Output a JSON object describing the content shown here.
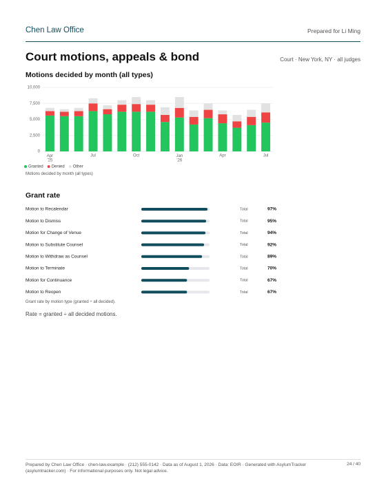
{
  "header": {
    "firm": "Chen Law Office",
    "prepared_for": "Prepared for Li Ming"
  },
  "title": "Court motions, appeals & bond",
  "scope": "Court · New York, NY · all judges",
  "chart_data": {
    "type": "bar",
    "stacked": true,
    "title": "Motions decided by month (all types)",
    "categories": [
      "Apr '25",
      null,
      null,
      "Jul",
      null,
      null,
      "Oct",
      null,
      null,
      "Jan '26",
      null,
      null,
      "Apr",
      null,
      null,
      "Jul"
    ],
    "series": [
      {
        "name": "Granted",
        "color": "#22c55e",
        "values": [
          5600,
          5500,
          5500,
          6300,
          5800,
          6200,
          6200,
          6200,
          4600,
          5300,
          4200,
          5200,
          4400,
          3700,
          4100,
          4500
        ]
      },
      {
        "name": "Denied",
        "color": "#ef4444",
        "values": [
          700,
          700,
          800,
          1200,
          800,
          1100,
          1200,
          1100,
          1100,
          1500,
          1200,
          1300,
          1400,
          1000,
          1300,
          1600
        ]
      },
      {
        "name": "Other",
        "color": "#e2e2e2",
        "values": [
          500,
          400,
          500,
          800,
          600,
          700,
          1100,
          700,
          1200,
          1700,
          1000,
          1000,
          600,
          1000,
          1100,
          1400
        ]
      }
    ],
    "ylim": [
      0,
      10000
    ],
    "yticks": [
      0,
      {
        "value": 2500,
        "label": "2,500"
      },
      {
        "value": 5000,
        "label": "5,000"
      },
      {
        "value": 7500,
        "label": "7,500"
      },
      {
        "value": 10000,
        "label": "10,000"
      }
    ],
    "grid": true,
    "legend": "bottom-left",
    "caption": "Motions decided by month (all types)"
  },
  "grant_rate": {
    "title": "Grant rate",
    "color": "#0f4c5c",
    "track_color": "#e5e7eb",
    "max": 100,
    "rows": [
      {
        "label": "Motion to Recalendar",
        "group": "Total",
        "value": 97,
        "value_label": "97%"
      },
      {
        "label": "Motion to Dismiss",
        "group": "Total",
        "value": 95,
        "value_label": "95%"
      },
      {
        "label": "Motion for Change of Venue",
        "group": "Total",
        "value": 94,
        "value_label": "94%"
      },
      {
        "label": "Motion to Substitute Counsel",
        "group": "Total",
        "value": 92,
        "value_label": "92%"
      },
      {
        "label": "Motion to Withdraw as Counsel",
        "group": "Total",
        "value": 89,
        "value_label": "89%"
      },
      {
        "label": "Motion to Terminate",
        "group": "Total",
        "value": 70,
        "value_label": "70%"
      },
      {
        "label": "Motion for Continuance",
        "group": "Total",
        "value": 67,
        "value_label": "67%"
      },
      {
        "label": "Motion to Reopen",
        "group": "Total",
        "value": 67,
        "value_label": "67%"
      }
    ],
    "caption": "Grant rate by motion type (granted ÷ all decided).",
    "note": "Rate = granted ÷ all decided motions."
  },
  "footer": {
    "text": "Prepared by Chen Law Office · chen-law.example · (212) 555-0142 · Data as of August 1, 2026 · Data: EOIR · Generated with AsylumTracker (asylumtracker.com) · For informational purposes only. Not legal advice.",
    "page": "24 / 40"
  }
}
